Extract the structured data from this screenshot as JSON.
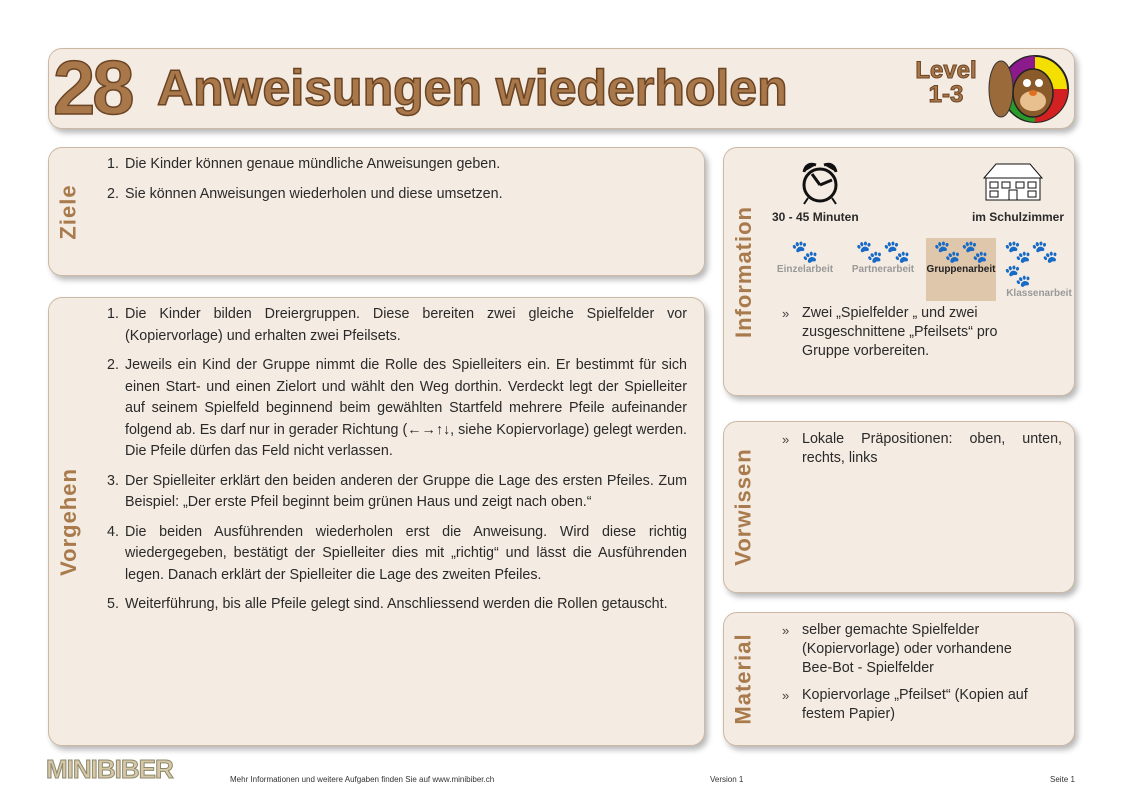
{
  "header": {
    "number": "28",
    "title": "Anweisungen wiederholen",
    "level_line1": "Level",
    "level_line2": "1-3"
  },
  "ziele": {
    "label": "Ziele",
    "items": [
      "Die Kinder können genaue mündliche Anweisungen geben.",
      "Sie können Anweisungen wiederholen und diese umsetzen."
    ]
  },
  "vorgehen": {
    "label": "Vorgehen",
    "items": [
      "Die Kinder bilden Dreiergruppen. Diese bereiten zwei gleiche Spielfelder vor (Kopiervorlage) und erhalten zwei Pfeilsets.",
      "Jeweils ein Kind der Gruppe nimmt die Rolle des Spielleiters ein. Er bestimmt für sich einen Start- und einen Zielort und wählt den Weg dorthin. Verdeckt legt der Spielleiter auf seinem Spielfeld beginnend beim gewählten Startfeld mehrere Pfeile aufeinander folgend ab. Es darf nur in gerader Richtung (←→↑↓, siehe Kopiervorlage) gelegt werden. Die Pfeile dürfen das Feld nicht verlassen.",
      "Der Spielleiter erklärt den beiden anderen der Gruppe die Lage des ersten Pfeiles. Zum Beispiel: „Der erste Pfeil beginnt beim grünen Haus und zeigt nach oben.“",
      "Die beiden Ausführenden wiederholen erst die Anweisung. Wird diese richtig wiedergegeben, bestätigt der Spielleiter dies mit „richtig“ und lässt die Ausführenden legen. Danach erklärt der Spielleiter die Lage des zweiten Pfeiles.",
      "Weiterführung, bis alle Pfeile gelegt sind. Anschliessend werden die Rollen getauscht."
    ]
  },
  "information": {
    "label": "Information",
    "duration": "30 - 45 Minuten",
    "location": "im Schulzimmer",
    "work_modes": [
      {
        "label": "Einzelarbeit",
        "selected": false
      },
      {
        "label": "Partnerarbeit",
        "selected": false
      },
      {
        "label": "Gruppenarbeit",
        "selected": true
      },
      {
        "label": "Klassenarbeit",
        "selected": false
      }
    ],
    "items": [
      "Zwei „Spielfelder „ und zwei zusgeschnittene „Pfeilsets“ pro Gruppe vorbereiten."
    ]
  },
  "vorwissen": {
    "label": "Vorwissen",
    "items": [
      "Lokale Präpositionen: oben, unten, rechts, links"
    ]
  },
  "material": {
    "label": "Material",
    "items": [
      "selber gemachte Spielfelder (Kopiervorlage) oder vorhandene Bee-Bot - Spielfelder",
      "Kopiervorlage „Pfeilset“ (Kopien auf festem Papier)"
    ]
  },
  "footer": {
    "logo": "MINIBIBER",
    "info": "Mehr Informationen und weitere Aufgaben finden Sie auf www.minibiber.ch",
    "version": "Version 1",
    "page": "Seite 1"
  },
  "colors": {
    "box_bg": "#f4ebe2",
    "label": "#a87a4c",
    "border": "#cdb9a3"
  }
}
